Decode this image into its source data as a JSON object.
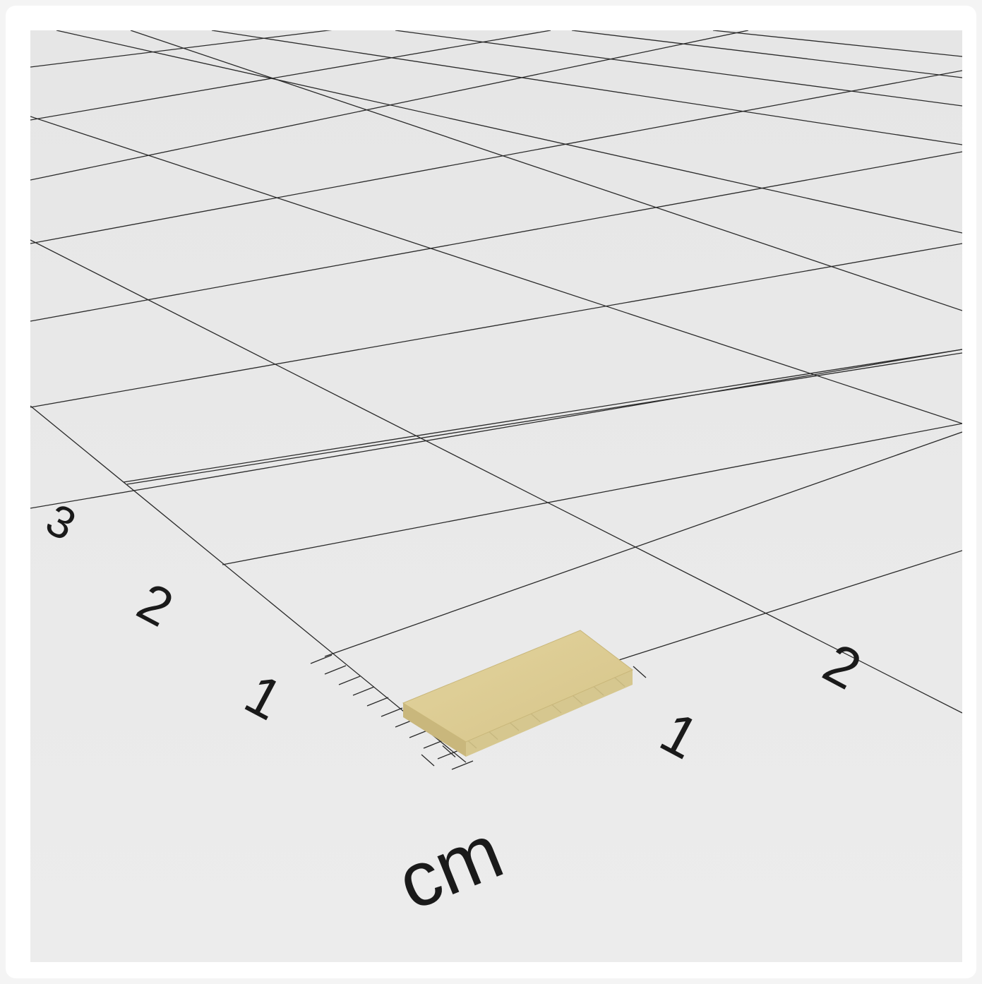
{
  "scene": {
    "unit_label": "cm",
    "x_axis_labels": [
      "1",
      "2"
    ],
    "y_axis_labels": [
      "1",
      "2",
      "3"
    ],
    "object": "gold-magnet-block",
    "colors": {
      "background": "#e9e9e9",
      "border": "#ffffff",
      "grid_line": "#2a2a2a",
      "magnet_top": "#dccb91",
      "magnet_side": "#c4b277",
      "text": "#1a1a1a"
    }
  }
}
